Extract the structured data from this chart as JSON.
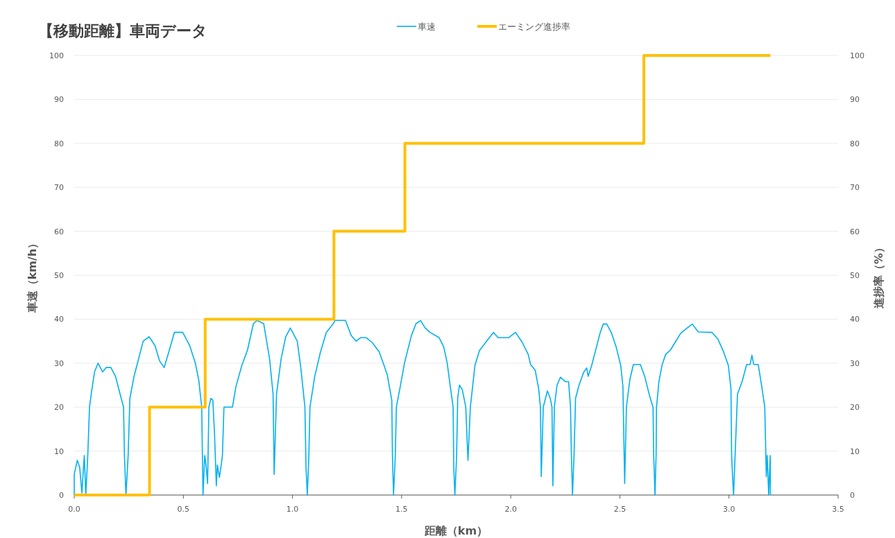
{
  "chart_data": {
    "type": "line",
    "title": "【移動距離】車両データ",
    "xlabel": "距離（km）",
    "ylabel": "車速（km/h）",
    "y2label": "進捗率（%）",
    "xlim": [
      0,
      3.5
    ],
    "xticks": [
      {
        "value": 0,
        "label": "0.0"
      },
      {
        "value": 0.5,
        "label": "0.5"
      },
      {
        "value": 1,
        "label": "1.0"
      },
      {
        "value": 1.5,
        "label": "1.5"
      },
      {
        "value": 2,
        "label": "2.0"
      },
      {
        "value": 2.5,
        "label": "2.5"
      },
      {
        "value": 3,
        "label": "3.0"
      },
      {
        "value": 3.5,
        "label": "3.5"
      }
    ],
    "ylim": [
      0,
      100
    ],
    "yticks": [
      0,
      10,
      20,
      30,
      40,
      50,
      60,
      70,
      80,
      90,
      100
    ],
    "y2lim": [
      0,
      100
    ],
    "y2ticks": [
      0,
      10,
      20,
      30,
      40,
      50,
      60,
      70,
      80,
      90,
      100
    ],
    "grid": "y",
    "legend": "top",
    "series": [
      {
        "name": "車速",
        "color": "#00b0f0",
        "x": [
          0,
          0,
          0.014,
          0.025,
          0.035,
          0.046,
          0.053,
          0.062,
          0.07,
          0.078,
          0.093,
          0.109,
          0.13,
          0.146,
          0.168,
          0.189,
          0.21,
          0.226,
          0.23,
          0.237,
          0.247,
          0.255,
          0.274,
          0.295,
          0.316,
          0.343,
          0.37,
          0.391,
          0.412,
          0.433,
          0.459,
          0.497,
          0.529,
          0.555,
          0.571,
          0.584,
          0.59,
          0.598,
          0.605,
          0.611,
          0.617,
          0.626,
          0.635,
          0.643,
          0.651,
          0.656,
          0.665,
          0.672,
          0.679,
          0.686,
          0.725,
          0.741,
          0.768,
          0.794,
          0.821,
          0.837,
          0.868,
          0.895,
          0.911,
          0.916,
          0.927,
          0.948,
          0.969,
          0.99,
          1.022,
          1.038,
          1.057,
          1.062,
          1.068,
          1.075,
          1.08,
          1.102,
          1.128,
          1.155,
          1.187,
          1.195,
          1.243,
          1.269,
          1.291,
          1.312,
          1.338,
          1.365,
          1.397,
          1.418,
          1.434,
          1.455,
          1.458,
          1.463,
          1.471,
          1.476,
          1.492,
          1.513,
          1.545,
          1.566,
          1.587,
          1.608,
          1.63,
          1.672,
          1.693,
          1.709,
          1.723,
          1.736,
          1.739,
          1.744,
          1.752,
          1.757,
          1.765,
          1.778,
          1.794,
          1.804,
          1.815,
          1.836,
          1.857,
          1.894,
          1.921,
          1.942,
          1.99,
          2.022,
          2.053,
          2.08,
          2.091,
          2.112,
          2.128,
          2.136,
          2.14,
          2.149,
          2.168,
          2.181,
          2.189,
          2.193,
          2.2,
          2.212,
          2.228,
          2.25,
          2.265,
          2.274,
          2.278,
          2.283,
          2.29,
          2.297,
          2.313,
          2.334,
          2.348,
          2.355,
          2.371,
          2.393,
          2.409,
          2.424,
          2.44,
          2.462,
          2.483,
          2.504,
          2.514,
          2.522,
          2.53,
          2.546,
          2.562,
          2.594,
          2.615,
          2.636,
          2.652,
          2.655,
          2.661,
          2.666,
          2.668,
          2.679,
          2.694,
          2.71,
          2.732,
          2.753,
          2.779,
          2.806,
          2.832,
          2.859,
          2.906,
          2.922,
          2.949,
          2.975,
          2.997,
          3.009,
          3.012,
          3.018,
          3.021,
          3.028,
          3.039,
          3.06,
          3.081,
          3.097,
          3.105,
          3.113,
          3.134,
          3.15,
          3.164,
          3.171,
          3.175,
          3.182,
          3.189,
          3.19
        ],
        "values": [
          0,
          4.7,
          7.9,
          6.3,
          0.5,
          9,
          0,
          9,
          20,
          23,
          28,
          30,
          28,
          29,
          29,
          27,
          23,
          20,
          9,
          0,
          9,
          22,
          27,
          31,
          35,
          36,
          34,
          30.5,
          29,
          32.5,
          37,
          37,
          34,
          30,
          26,
          20,
          0,
          9,
          6.3,
          2.6,
          20,
          22,
          21.6,
          13.7,
          2.1,
          6.8,
          4,
          6.3,
          9,
          20,
          20,
          24.7,
          29.5,
          33,
          39,
          39.7,
          39,
          31,
          23,
          4.7,
          23,
          31,
          36,
          38,
          35,
          29,
          20,
          6.3,
          0,
          9,
          20,
          27,
          32.5,
          37,
          39,
          39.7,
          39.7,
          36.3,
          35,
          35.8,
          35.8,
          34.7,
          32.6,
          29.7,
          27.4,
          21.6,
          9,
          0,
          9,
          20,
          24.2,
          30,
          36.3,
          39,
          39.7,
          38,
          37,
          35.8,
          33.7,
          30,
          24.7,
          20,
          6.3,
          0,
          9,
          22,
          25,
          24,
          20,
          7.9,
          20,
          29.5,
          32.9,
          35.3,
          37,
          35.8,
          35.8,
          37,
          34.7,
          32,
          29.7,
          28.4,
          24.2,
          20,
          4.2,
          20,
          23.7,
          22,
          20,
          2.1,
          20,
          25,
          26.8,
          25.8,
          25.8,
          20,
          9,
          0,
          9,
          22,
          25,
          27.9,
          28.9,
          27,
          29.5,
          33.7,
          36.8,
          38.9,
          38.9,
          36.8,
          33.7,
          29.5,
          24.7,
          2.6,
          20,
          26.3,
          29.7,
          29.7,
          26.8,
          22.6,
          20,
          9,
          0,
          9,
          20,
          25.8,
          29.7,
          32,
          33,
          34.7,
          36.8,
          37.9,
          38.9,
          37.1,
          37,
          37,
          35.5,
          32.6,
          29.5,
          24.2,
          9,
          2.6,
          0,
          9,
          23,
          25.8,
          29.7,
          29.7,
          31.8,
          29.7,
          29.7,
          24.7,
          20,
          4.2,
          9,
          0,
          9,
          0
        ]
      },
      {
        "name": "エーミング進捗率",
        "color": "#ffc000",
        "type": "step",
        "axis": "y2",
        "x": [
          0,
          0.345,
          0.6,
          1.19,
          1.515,
          2.61,
          3.19
        ],
        "values": [
          0,
          20,
          40,
          60,
          80,
          100,
          100
        ]
      }
    ]
  }
}
